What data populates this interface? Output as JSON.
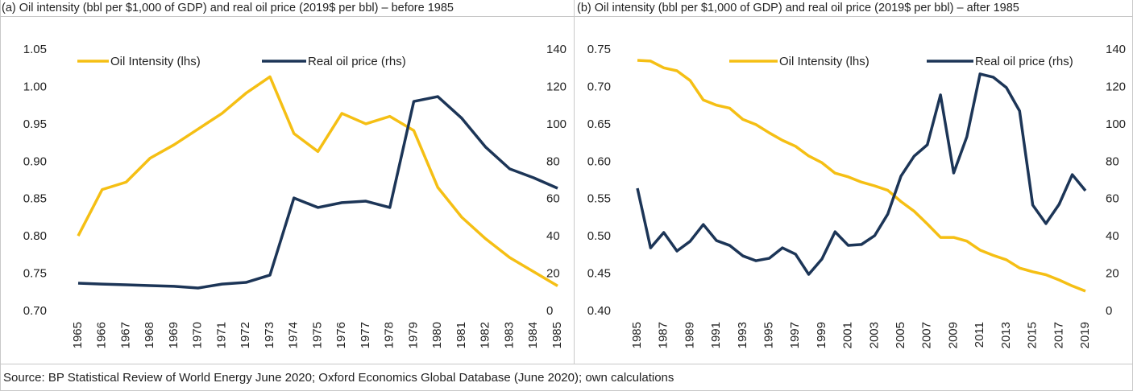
{
  "source": "Source: BP Statistical Review of World Energy June 2020; Oxford Economics Global Database (June 2020); own calculations",
  "chart_data": [
    {
      "type": "line",
      "title": "(a) Oil intensity (bbl per $1,000 of GDP) and real oil price (2019$ per bbl) – before 1985",
      "categories": [
        "1965",
        "1966",
        "1967",
        "1968",
        "1969",
        "1970",
        "1971",
        "1972",
        "1973",
        "1974",
        "1975",
        "1976",
        "1977",
        "1978",
        "1979",
        "1980",
        "1981",
        "1982",
        "1983",
        "1984",
        "1985"
      ],
      "series": [
        {
          "name": "Oil Intensity (lhs)",
          "color": "#f5bf14",
          "axis": "y",
          "values": [
            0.801,
            0.863,
            0.873,
            0.905,
            0.923,
            0.944,
            0.965,
            0.992,
            1.014,
            0.938,
            0.914,
            0.965,
            0.951,
            0.961,
            0.942,
            0.866,
            0.826,
            0.797,
            0.772,
            0.753,
            0.734
          ]
        },
        {
          "name": "Real oil price (rhs)",
          "color": "#1c3557",
          "axis": "y2",
          "values": [
            15.1,
            14.6,
            14.2,
            13.8,
            13.4,
            12.5,
            14.6,
            15.5,
            19.4,
            60.7,
            55.6,
            58.2,
            59,
            55.6,
            112.4,
            115,
            103.4,
            87.9,
            76.3,
            71.5,
            65.9
          ]
        }
      ],
      "ylim": [
        0.7,
        1.05
      ],
      "yticks": [
        {
          "value": 0.7,
          "label": "0.70"
        },
        0.75,
        {
          "value": 0.8,
          "label": "0.80"
        },
        0.85,
        {
          "value": 0.9,
          "label": "0.90"
        },
        0.95,
        {
          "value": 1.0,
          "label": "1.00"
        },
        1.05
      ],
      "y2lim": [
        0,
        140
      ],
      "y2ticks": [
        0,
        20,
        40,
        60,
        80,
        100,
        120,
        140
      ],
      "legend": "top",
      "grid": false
    },
    {
      "type": "line",
      "title": "(b) Oil intensity (bbl per $1,000 of GDP) and real oil price (2019$ per bbl) – after 1985",
      "categories": [
        "1985",
        null,
        "1987",
        null,
        "1989",
        null,
        "1991",
        null,
        "1993",
        null,
        "1995",
        null,
        "1997",
        null,
        "1999",
        null,
        "2001",
        null,
        "2003",
        null,
        "2005",
        null,
        "2007",
        null,
        "2009",
        null,
        "2011",
        null,
        "2013",
        null,
        "2015",
        null,
        "2017",
        null,
        "2019"
      ],
      "series": [
        {
          "name": "Oil Intensity (lhs)",
          "color": "#f5bf14",
          "axis": "y",
          "values": [
            0.736,
            0.735,
            0.726,
            0.722,
            0.709,
            0.683,
            0.676,
            0.672,
            0.657,
            0.65,
            0.639,
            0.629,
            0.621,
            0.608,
            0.599,
            0.585,
            0.58,
            0.573,
            0.568,
            0.562,
            0.547,
            0.534,
            0.517,
            0.499,
            0.499,
            0.494,
            0.482,
            0.475,
            0.469,
            0.458,
            0.453,
            0.449,
            0.442,
            0.434,
            0.427
          ]
        },
        {
          "name": "Real oil price (rhs)",
          "color": "#1c3557",
          "axis": "y2",
          "values": [
            65.9,
            34,
            42.2,
            32.3,
            37.5,
            46.5,
            37.9,
            35.3,
            29.7,
            27.1,
            28.4,
            34,
            30.6,
            19.8,
            28,
            42.6,
            35.3,
            35.8,
            40.5,
            52.1,
            72.4,
            83.1,
            89.2,
            115.9,
            74.1,
            93.5,
            127.1,
            125.4,
            119.8,
            107.3,
            56.9,
            47,
            57.3,
            73.2,
            64.6
          ]
        }
      ],
      "ylim": [
        0.4,
        0.75
      ],
      "yticks": [
        {
          "value": 0.4,
          "label": "0.40"
        },
        0.45,
        {
          "value": 0.5,
          "label": "0.50"
        },
        0.55,
        {
          "value": 0.6,
          "label": "0.60"
        },
        0.65,
        {
          "value": 0.7,
          "label": "0.70"
        },
        0.75
      ],
      "y2lim": [
        0,
        140
      ],
      "y2ticks": [
        0,
        20,
        40,
        60,
        80,
        100,
        120,
        140
      ],
      "legend": "top",
      "grid": false
    }
  ]
}
